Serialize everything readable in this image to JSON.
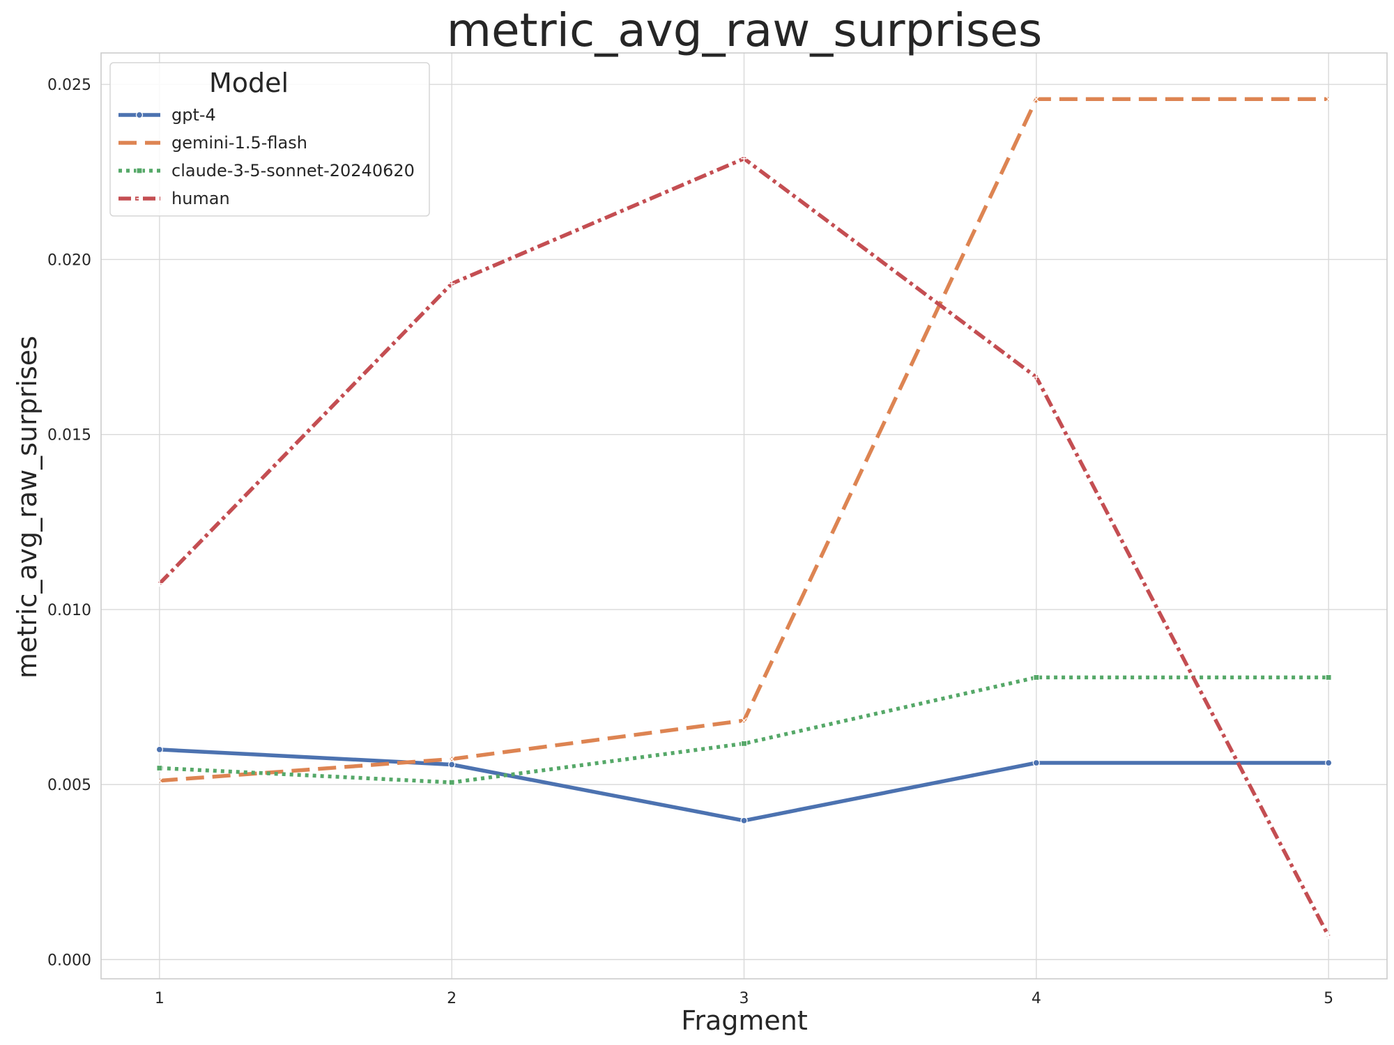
{
  "chart_data": {
    "type": "line",
    "title": "metric_avg_raw_surprises",
    "xlabel": "Fragment",
    "ylabel": "metric_avg_raw_surprises",
    "x": [
      1,
      2,
      3,
      4,
      5
    ],
    "x_tick_labels": [
      "1",
      "2",
      "3",
      "4",
      "5"
    ],
    "xlim": [
      0.8,
      5.2
    ],
    "ylim": [
      -0.00055,
      0.0259
    ],
    "y_ticks": [
      0.0,
      0.005,
      0.01,
      0.015,
      0.02,
      0.025
    ],
    "y_tick_labels": [
      "0.000",
      "0.005",
      "0.010",
      "0.015",
      "0.020",
      "0.025"
    ],
    "grid": true,
    "legend_title": "Model",
    "legend_position": "top-left",
    "series": [
      {
        "name": "gpt-4",
        "values": [
          0.006,
          0.00557,
          0.00397,
          0.00562,
          0.00562
        ],
        "color": "#4c72b0",
        "dash": "solid",
        "marker": "circle"
      },
      {
        "name": "gemini-1.5-flash",
        "values": [
          0.00511,
          0.00573,
          0.00683,
          0.02458,
          0.02458
        ],
        "color": "#dd8452",
        "dash": "dashed",
        "marker": "x"
      },
      {
        "name": "claude-3-5-sonnet-20240620",
        "values": [
          0.00547,
          0.00506,
          0.00617,
          0.00806,
          0.00806
        ],
        "color": "#55a868",
        "dash": "dotted",
        "marker": "square"
      },
      {
        "name": "human",
        "values": [
          0.01074,
          0.01931,
          0.02288,
          0.01664,
          0.00067
        ],
        "color": "#c44e52",
        "dash": "dashdot",
        "marker": "plus"
      }
    ]
  }
}
